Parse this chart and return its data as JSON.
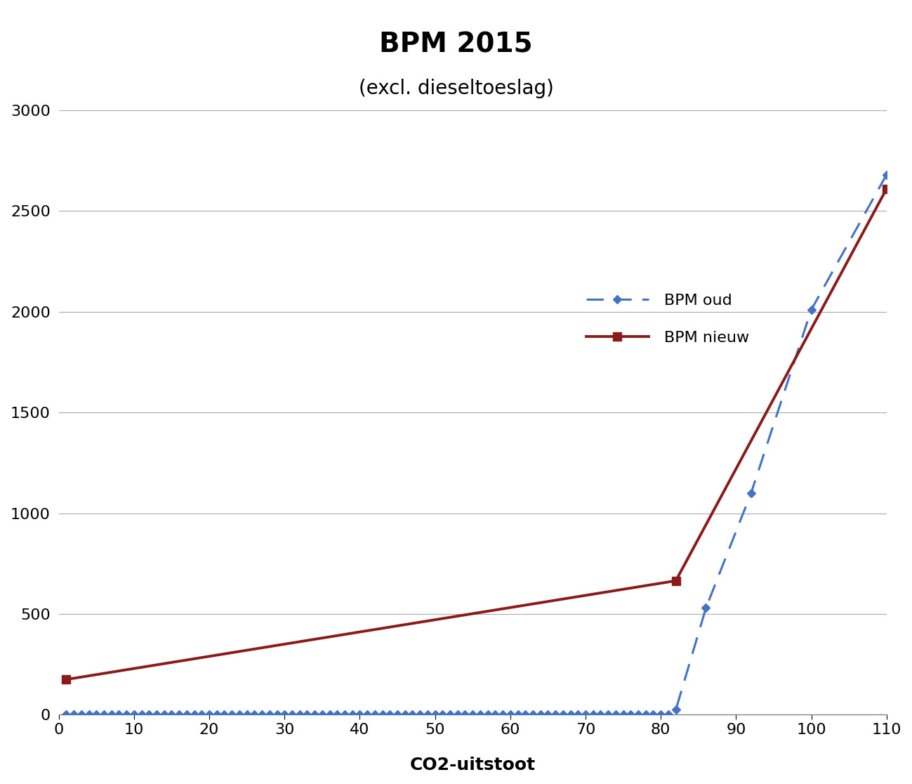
{
  "title1": "BPM 2015",
  "title2": "(excl. dieseltoeslag)",
  "xlabel": "CO2-uitstoot",
  "ylim": [
    0,
    3000
  ],
  "xlim": [
    0,
    110
  ],
  "yticks": [
    0,
    500,
    1000,
    1500,
    2000,
    2500,
    3000
  ],
  "xticks": [
    0,
    10,
    20,
    30,
    40,
    50,
    60,
    70,
    80,
    90,
    100,
    110
  ],
  "bpm_oud": {
    "x": [
      1,
      2,
      3,
      4,
      5,
      6,
      7,
      8,
      9,
      10,
      11,
      12,
      13,
      14,
      15,
      16,
      17,
      18,
      19,
      20,
      21,
      22,
      23,
      24,
      25,
      26,
      27,
      28,
      29,
      30,
      31,
      32,
      33,
      34,
      35,
      36,
      37,
      38,
      39,
      40,
      41,
      42,
      43,
      44,
      45,
      46,
      47,
      48,
      49,
      50,
      51,
      52,
      53,
      54,
      55,
      56,
      57,
      58,
      59,
      60,
      61,
      62,
      63,
      64,
      65,
      66,
      67,
      68,
      69,
      70,
      71,
      72,
      73,
      74,
      75,
      76,
      77,
      78,
      79,
      80,
      81,
      82,
      86,
      92,
      100,
      110
    ],
    "y": [
      0,
      0,
      0,
      0,
      0,
      0,
      0,
      0,
      0,
      0,
      0,
      0,
      0,
      0,
      0,
      0,
      0,
      0,
      0,
      0,
      0,
      0,
      0,
      0,
      0,
      0,
      0,
      0,
      0,
      0,
      0,
      0,
      0,
      0,
      0,
      0,
      0,
      0,
      0,
      0,
      0,
      0,
      0,
      0,
      0,
      0,
      0,
      0,
      0,
      0,
      0,
      0,
      0,
      0,
      0,
      0,
      0,
      0,
      0,
      0,
      0,
      0,
      0,
      0,
      0,
      0,
      0,
      0,
      0,
      0,
      0,
      0,
      0,
      0,
      0,
      0,
      0,
      0,
      0,
      0,
      0,
      25,
      530,
      1100,
      2010,
      2680
    ],
    "color": "#4472C4",
    "linestyle": "--",
    "marker": "D",
    "markersize": 6,
    "linewidth": 2.2,
    "label": "BPM oud"
  },
  "bpm_nieuw": {
    "x": [
      1,
      82,
      110
    ],
    "y": [
      175,
      665,
      2610
    ],
    "color": "#8B1A1A",
    "linestyle": "-",
    "marker": "s",
    "markersize": 9,
    "linewidth": 2.8,
    "label": "BPM nieuw"
  },
  "background_color": "#FFFFFF",
  "grid_color": "#AAAAAA",
  "title1_fontsize": 28,
  "title2_fontsize": 20,
  "tick_fontsize": 16,
  "label_fontsize": 18,
  "legend_fontsize": 16
}
